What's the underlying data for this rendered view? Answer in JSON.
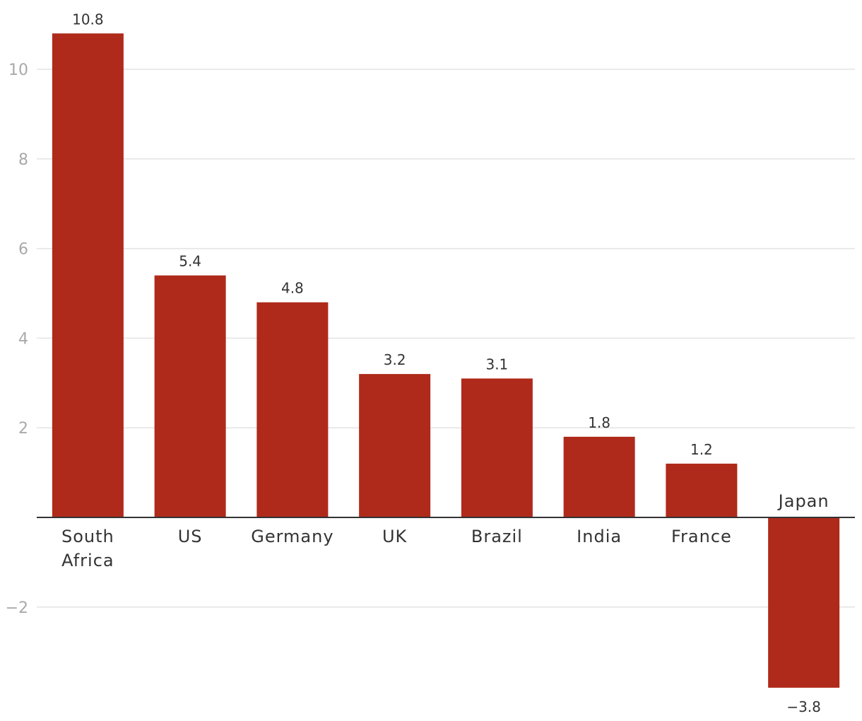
{
  "chart_data": {
    "type": "bar",
    "categories": [
      [
        "South",
        "Africa"
      ],
      [
        "US"
      ],
      [
        "Germany"
      ],
      [
        "UK"
      ],
      [
        "Brazil"
      ],
      [
        "India"
      ],
      [
        "France"
      ],
      [
        "Japan"
      ]
    ],
    "values": [
      10.8,
      5.4,
      4.8,
      3.2,
      3.1,
      1.8,
      1.2,
      -3.8
    ],
    "value_labels": [
      "10.8",
      "5.4",
      "4.8",
      "3.2",
      "3.1",
      "1.8",
      "1.2",
      "−3.8"
    ],
    "yticks": [
      10,
      8,
      6,
      4,
      2,
      -2
    ],
    "ytick_labels": [
      "10",
      "8",
      "6",
      "4",
      "2",
      "−2"
    ],
    "ylim": [
      -4,
      11.2
    ],
    "grid": true,
    "bar_color": "#af2a1a",
    "title": "",
    "xlabel": "",
    "ylabel": ""
  }
}
